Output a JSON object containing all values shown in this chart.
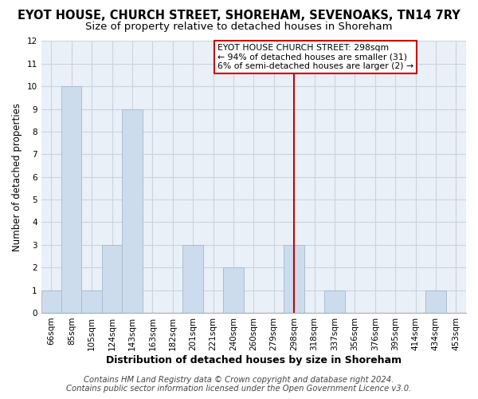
{
  "title": "EYOT HOUSE, CHURCH STREET, SHOREHAM, SEVENOAKS, TN14 7RY",
  "subtitle": "Size of property relative to detached houses in Shoreham",
  "xlabel": "Distribution of detached houses by size in Shoreham",
  "ylabel": "Number of detached properties",
  "bins": [
    "66sqm",
    "85sqm",
    "105sqm",
    "124sqm",
    "143sqm",
    "163sqm",
    "182sqm",
    "201sqm",
    "221sqm",
    "240sqm",
    "260sqm",
    "279sqm",
    "298sqm",
    "318sqm",
    "337sqm",
    "356sqm",
    "376sqm",
    "395sqm",
    "414sqm",
    "434sqm",
    "453sqm"
  ],
  "bar_values": [
    1,
    10,
    1,
    3,
    9,
    0,
    0,
    3,
    0,
    2,
    0,
    0,
    3,
    0,
    1,
    0,
    0,
    0,
    0,
    1,
    0
  ],
  "bar_color": "#ccdcec",
  "bar_edge_color": "#aabece",
  "grid_color": "#c8d4e0",
  "plot_bg_color": "#eaf0f8",
  "vline_bin_index": 12,
  "vline_color": "#cc0000",
  "annotation_title": "EYOT HOUSE CHURCH STREET: 298sqm",
  "annotation_line1": "← 94% of detached houses are smaller (31)",
  "annotation_line2": "6% of semi-detached houses are larger (2) →",
  "annotation_box_color": "#ffffff",
  "annotation_border_color": "#cc0000",
  "footer_line1": "Contains HM Land Registry data © Crown copyright and database right 2024.",
  "footer_line2": "Contains public sector information licensed under the Open Government Licence v3.0.",
  "ylim": [
    0,
    12
  ],
  "yticks": [
    0,
    1,
    2,
    3,
    4,
    5,
    6,
    7,
    8,
    9,
    10,
    11,
    12
  ],
  "title_fontsize": 10.5,
  "subtitle_fontsize": 9.5,
  "xlabel_fontsize": 9,
  "ylabel_fontsize": 8.5,
  "tick_fontsize": 7.5,
  "annotation_fontsize": 7.8,
  "footer_fontsize": 7.2
}
